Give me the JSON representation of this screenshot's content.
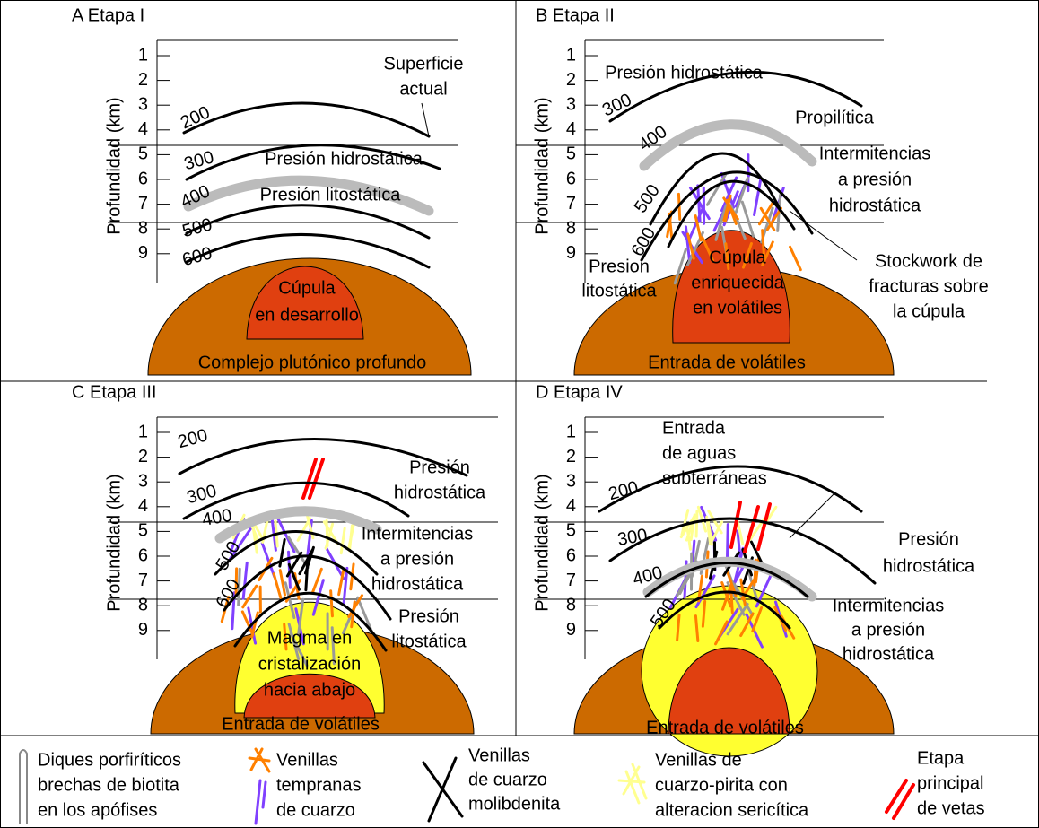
{
  "panels": [
    {
      "title": "A Etapa I",
      "axis_label": "Profundidad (km)",
      "depth_ticks": [
        1,
        2,
        3,
        4,
        5,
        6,
        7,
        8,
        9
      ],
      "isotherms": [
        200,
        300,
        400,
        500,
        600
      ],
      "labels": [
        [
          "Superficie",
          "actual"
        ],
        [
          "Presión hidrostática"
        ],
        [
          "Presión litostática"
        ],
        [
          "Cúpula",
          "en desarrollo"
        ],
        [
          "Complejo plutónico profundo"
        ]
      ]
    },
    {
      "title": "B Etapa II",
      "axis_label": "Profundidad (km)",
      "depth_ticks": [
        1,
        2,
        3,
        4,
        5,
        6,
        7,
        8,
        9
      ],
      "isotherms": [
        300,
        400,
        500,
        600
      ],
      "labels": [
        [
          "Presión hidrostática"
        ],
        [
          "Propilítica"
        ],
        [
          "Intermitencias",
          "a presión",
          "hidrostática"
        ],
        [
          "Stockwork de",
          "fracturas sobre",
          "la cúpula"
        ],
        [
          "Presion",
          "litostática"
        ],
        [
          "Cúpula",
          "enriquecida",
          "en volátiles"
        ],
        [
          "Entrada de volátiles"
        ]
      ]
    },
    {
      "title": "C Etapa III",
      "axis_label": "Profundidad (km)",
      "depth_ticks": [
        1,
        2,
        3,
        4,
        5,
        6,
        7,
        8,
        9
      ],
      "isotherms": [
        200,
        300,
        400,
        500,
        600
      ],
      "labels": [
        [
          "Presión",
          "hidrostática"
        ],
        [
          "Intermitencias",
          "a presión",
          "hidrostática"
        ],
        [
          "Presión",
          "litostática"
        ],
        [
          "Magma en",
          "cristalización",
          "hacia abajo"
        ],
        [
          "Entrada de volátiles"
        ]
      ]
    },
    {
      "title": "D Etapa IV",
      "axis_label": "Profundidad (km)",
      "depth_ticks": [
        1,
        2,
        3,
        4,
        5,
        6,
        7,
        8,
        9
      ],
      "isotherms": [
        200,
        300,
        400,
        500
      ],
      "labels": [
        [
          "Entrada",
          "de aguas",
          "subterráneas"
        ],
        [
          "Presión",
          "hidrostática"
        ],
        [
          "Intermitencias",
          "a presión",
          "hidrostática"
        ],
        [
          "Entrada de volátiles"
        ]
      ]
    }
  ],
  "legend": [
    [
      "Diques porfiríticos",
      "brechas de biotita",
      "en los apófises"
    ],
    [
      "Venillas",
      "tempranas",
      "de cuarzo"
    ],
    [
      "Venillas",
      "de cuarzo",
      "molibdenita"
    ],
    [
      "Venillas de",
      "cuarzo-pirita con",
      "alteracion sericítica"
    ],
    [
      "Etapa",
      "principal",
      "de vetas"
    ]
  ]
}
